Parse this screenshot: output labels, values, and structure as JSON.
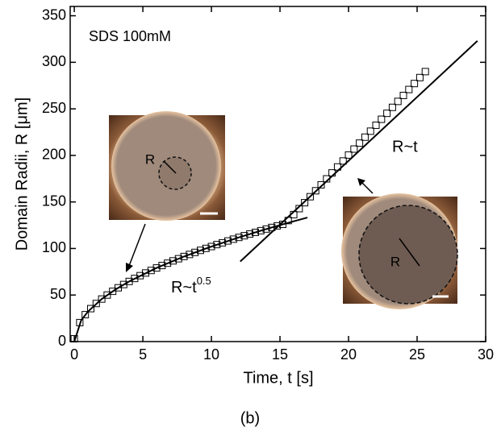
{
  "chart_data": {
    "type": "scatter",
    "label": "SDS 100mM",
    "caption": "(b)",
    "x_label": "Time, t [s]",
    "y_label": "Domain Radii, R [μm]",
    "xlim": [
      -0.3,
      30
    ],
    "ylim": [
      0,
      360
    ],
    "xticks": [
      0,
      5,
      10,
      15,
      20,
      25,
      30
    ],
    "yticks": [
      0,
      50,
      100,
      150,
      200,
      250,
      300,
      350
    ],
    "x": [
      0,
      0.4,
      0.8,
      1.2,
      1.6,
      2.0,
      2.4,
      2.8,
      3.2,
      3.6,
      4.0,
      4.4,
      4.8,
      5.2,
      5.6,
      6.0,
      6.4,
      6.8,
      7.2,
      7.6,
      8.0,
      8.4,
      8.8,
      9.2,
      9.6,
      10.0,
      10.4,
      10.8,
      11.2,
      11.6,
      12.0,
      12.4,
      12.8,
      13.2,
      13.6,
      14.0,
      14.4,
      14.8,
      15.2,
      15.6,
      16.0,
      16.4,
      16.8,
      17.2,
      17.6,
      18.0,
      18.4,
      18.8,
      19.2,
      19.6,
      20.0,
      20.4,
      20.8,
      21.2,
      21.6,
      22.0,
      22.4,
      22.8,
      23.2,
      23.6,
      24.0,
      24.4,
      24.8,
      25.2,
      25.6
    ],
    "series": [
      {
        "color": "#000000",
        "values": [
          3,
          20.4,
          28.9,
          35.4,
          40.9,
          45.7,
          50.0,
          54.0,
          57.8,
          61.3,
          64.6,
          67.8,
          70.8,
          73.7,
          76.4,
          79.1,
          81.7,
          84.2,
          86.7,
          89.0,
          91.4,
          93.6,
          95.8,
          98.0,
          100.1,
          102.1,
          104.2,
          106.1,
          108.1,
          110.0,
          111.9,
          113.7,
          115.6,
          117.3,
          119.1,
          120.9,
          122.6,
          124.3,
          125.9,
          130,
          136.4,
          142.8,
          149.2,
          155.6,
          162,
          168.4,
          174.8,
          181.2,
          187.6,
          194,
          200.4,
          206.8,
          213.2,
          219.6,
          226,
          232.4,
          238.8,
          245.2,
          251.6,
          258,
          264.4,
          270.8,
          277.2,
          283.6,
          290
        ]
      }
    ],
    "fits": [
      {
        "x": [
          0,
          0.5,
          1,
          2,
          3,
          4,
          6,
          8,
          10,
          12,
          14,
          16,
          17
        ],
        "values": [
          0,
          22.8,
          32.3,
          45.7,
          55.9,
          64.6,
          79.1,
          91.4,
          102.1,
          111.9,
          120.9,
          129.2,
          133.2
        ]
      },
      {
        "x": [
          12.1,
          29.4
        ],
        "values": [
          86,
          323
        ]
      }
    ],
    "annotations": [
      {
        "text": "R~t",
        "sup": "0.5"
      },
      {
        "text": "R~t"
      }
    ],
    "insets": [
      {
        "label": "R"
      },
      {
        "label": "R"
      }
    ]
  }
}
